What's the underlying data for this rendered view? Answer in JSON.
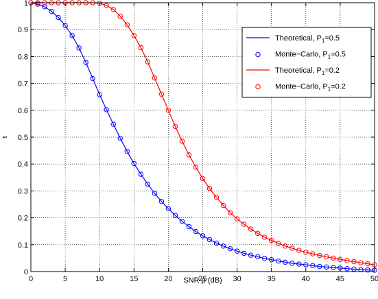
{
  "chart_data": {
    "type": "line",
    "xlabel": "SNR ρ (dB)",
    "ylabel": "τ",
    "xlim": [
      0,
      50
    ],
    "ylim": [
      0,
      1
    ],
    "xticks": [
      0,
      5,
      10,
      15,
      20,
      25,
      30,
      35,
      40,
      45,
      50
    ],
    "yticks": [
      0,
      0.1,
      0.2,
      0.3,
      0.4,
      0.5,
      0.6,
      0.7,
      0.8,
      0.9,
      1
    ],
    "grid": true,
    "legend_position": "top-right",
    "series": [
      {
        "name": "Theoretical, P1=0.5",
        "legend_label": {
          "main": "Theoretical, P",
          "sub": "1",
          "tail": "=0.5"
        },
        "style": "line",
        "color": "#0000ff",
        "x": [
          0,
          1,
          2,
          3,
          4,
          5,
          6,
          7,
          8,
          9,
          10,
          11,
          12,
          13,
          14,
          15,
          16,
          17,
          18,
          19,
          20,
          21,
          22,
          23,
          24,
          25,
          26,
          27,
          28,
          29,
          30,
          31,
          32,
          33,
          34,
          35,
          36,
          37,
          38,
          39,
          40,
          41,
          42,
          43,
          44,
          45,
          46,
          47,
          48,
          49,
          50
        ],
        "y": [
          1.0,
          0.995,
          0.985,
          0.968,
          0.945,
          0.915,
          0.878,
          0.832,
          0.778,
          0.718,
          0.658,
          0.602,
          0.548,
          0.496,
          0.447,
          0.402,
          0.362,
          0.325,
          0.291,
          0.261,
          0.234,
          0.209,
          0.187,
          0.167,
          0.149,
          0.133,
          0.119,
          0.106,
          0.095,
          0.085,
          0.076,
          0.068,
          0.061,
          0.055,
          0.049,
          0.044,
          0.039,
          0.035,
          0.031,
          0.028,
          0.025,
          0.022,
          0.019,
          0.017,
          0.015,
          0.013,
          0.011,
          0.009,
          0.007,
          0.006,
          0.005
        ]
      },
      {
        "name": "Monte−Carlo, P1=0.5",
        "legend_label": {
          "main": "Monte−Carlo, P",
          "sub": "1",
          "tail": "=0.5"
        },
        "style": "marker",
        "marker": "circle",
        "color": "#0000ff",
        "x": [
          0,
          1,
          2,
          3,
          4,
          5,
          6,
          7,
          8,
          9,
          10,
          11,
          12,
          13,
          14,
          15,
          16,
          17,
          18,
          19,
          20,
          21,
          22,
          23,
          24,
          25,
          26,
          27,
          28,
          29,
          30,
          31,
          32,
          33,
          34,
          35,
          36,
          37,
          38,
          39,
          40,
          41,
          42,
          43,
          44,
          45,
          46,
          47,
          48,
          49,
          50
        ],
        "y": [
          1.0,
          0.995,
          0.985,
          0.968,
          0.945,
          0.915,
          0.878,
          0.832,
          0.778,
          0.718,
          0.658,
          0.602,
          0.548,
          0.496,
          0.447,
          0.402,
          0.362,
          0.325,
          0.291,
          0.261,
          0.234,
          0.209,
          0.187,
          0.167,
          0.149,
          0.133,
          0.119,
          0.106,
          0.095,
          0.085,
          0.076,
          0.068,
          0.061,
          0.055,
          0.049,
          0.044,
          0.039,
          0.035,
          0.031,
          0.028,
          0.025,
          0.022,
          0.019,
          0.017,
          0.015,
          0.013,
          0.011,
          0.009,
          0.007,
          0.006,
          0.005
        ]
      },
      {
        "name": "Theoretical, P1=0.2",
        "legend_label": {
          "main": "Theoretical, P",
          "sub": "1",
          "tail": "=0.2"
        },
        "style": "line",
        "color": "#ff0000",
        "x": [
          0,
          1,
          2,
          3,
          4,
          5,
          6,
          7,
          8,
          9,
          10,
          11,
          12,
          13,
          14,
          15,
          16,
          17,
          18,
          19,
          20,
          21,
          22,
          23,
          24,
          25,
          26,
          27,
          28,
          29,
          30,
          31,
          32,
          33,
          34,
          35,
          36,
          37,
          38,
          39,
          40,
          41,
          42,
          43,
          44,
          45,
          46,
          47,
          48,
          49,
          50
        ],
        "y": [
          1.0,
          1.0,
          1.0,
          1.0,
          1.0,
          1.0,
          1.0,
          1.0,
          1.0,
          1.0,
          0.998,
          0.99,
          0.975,
          0.95,
          0.918,
          0.878,
          0.833,
          0.78,
          0.72,
          0.66,
          0.6,
          0.54,
          0.485,
          0.434,
          0.388,
          0.346,
          0.309,
          0.276,
          0.246,
          0.219,
          0.196,
          0.176,
          0.158,
          0.142,
          0.128,
          0.116,
          0.105,
          0.095,
          0.087,
          0.079,
          0.072,
          0.066,
          0.06,
          0.055,
          0.05,
          0.045,
          0.041,
          0.037,
          0.033,
          0.029,
          0.025
        ]
      },
      {
        "name": "Monte−Carlo, P1=0.2",
        "legend_label": {
          "main": "Monte−Carlo, P",
          "sub": "1",
          "tail": "=0.2"
        },
        "style": "marker",
        "marker": "circle",
        "color": "#ff0000",
        "x": [
          0,
          1,
          2,
          3,
          4,
          5,
          6,
          7,
          8,
          9,
          10,
          11,
          12,
          13,
          14,
          15,
          16,
          17,
          18,
          19,
          20,
          21,
          22,
          23,
          24,
          25,
          26,
          27,
          28,
          29,
          30,
          31,
          32,
          33,
          34,
          35,
          36,
          37,
          38,
          39,
          40,
          41,
          42,
          43,
          44,
          45,
          46,
          47,
          48,
          49,
          50
        ],
        "y": [
          1.0,
          1.0,
          1.0,
          1.0,
          1.0,
          1.0,
          1.0,
          1.0,
          1.0,
          1.0,
          0.998,
          0.99,
          0.975,
          0.95,
          0.918,
          0.878,
          0.833,
          0.78,
          0.72,
          0.66,
          0.6,
          0.54,
          0.485,
          0.434,
          0.388,
          0.346,
          0.309,
          0.276,
          0.246,
          0.219,
          0.196,
          0.176,
          0.158,
          0.142,
          0.128,
          0.116,
          0.105,
          0.095,
          0.087,
          0.079,
          0.072,
          0.066,
          0.06,
          0.055,
          0.05,
          0.045,
          0.041,
          0.037,
          0.033,
          0.029,
          0.025
        ]
      }
    ]
  }
}
